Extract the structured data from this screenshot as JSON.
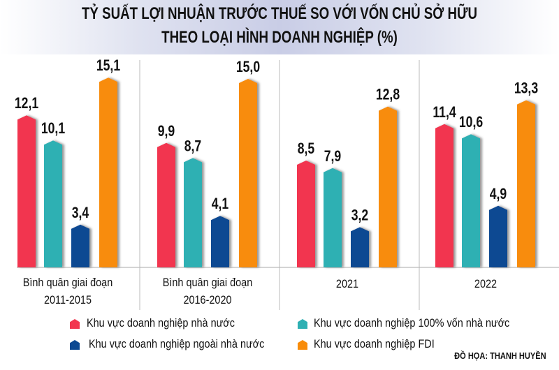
{
  "chart_data": {
    "type": "bar",
    "title": "TỶ SUẤT LỢI NHUẬN TRƯỚC THUẾ SO VỚI VỐN CHỦ SỞ HỮU",
    "subtitle": "THEO LOẠI HÌNH DOANH NGHIỆP (%)",
    "categories": [
      [
        "Bình quân giai đoạn",
        "2011-2015"
      ],
      [
        "Bình quân giai đoạn",
        "2016-2020"
      ],
      [
        "2021"
      ],
      [
        "2022"
      ]
    ],
    "series": [
      {
        "name": "Khu vực doanh nghiệp nhà nước",
        "color": "#f2364f",
        "values": [
          12.1,
          9.9,
          8.5,
          11.4
        ],
        "labels": [
          "12,1",
          "9,9",
          "8,5",
          "11,4"
        ]
      },
      {
        "name": "Khu vực doanh nghiệp 100% vốn nhà nước",
        "color": "#2fb0b3",
        "values": [
          10.1,
          8.7,
          7.9,
          10.6
        ],
        "labels": [
          "10,1",
          "8,7",
          "7,9",
          "10,6"
        ]
      },
      {
        "name": "Khu vực doanh nghiệp ngoài nhà nước",
        "color": "#0c4892",
        "values": [
          3.4,
          4.1,
          3.2,
          4.9
        ],
        "labels": [
          "3,4",
          "4,1",
          "3,2",
          "4,9"
        ]
      },
      {
        "name": "Khu vực doanh nghiệp FDI",
        "color": "#f88c0a",
        "values": [
          15.1,
          15.0,
          12.8,
          13.3
        ],
        "labels": [
          "15,1",
          "15,0",
          "12,8",
          "13,3"
        ]
      }
    ],
    "ylim": [
      0,
      16
    ],
    "grid": false,
    "legend_placement": "bottom"
  },
  "credit": "ĐỒ HỌA: THANH HUYỀN"
}
